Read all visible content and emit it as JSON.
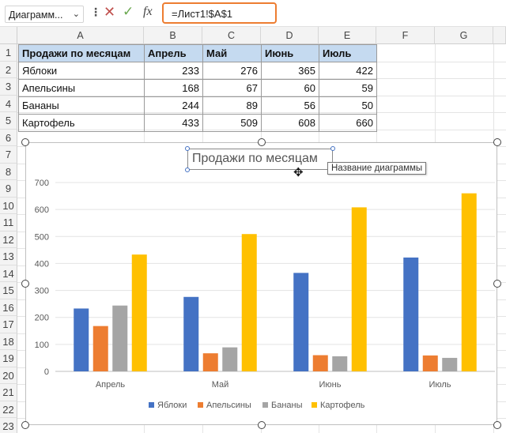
{
  "formula_bar": {
    "name_box": "Диаграмм...",
    "chevron": "⌄",
    "dots": "⋮",
    "cancel": "✕",
    "enter": "✓",
    "fx": "fx",
    "formula": "=Лист1!$A$1"
  },
  "columns": [
    "A",
    "B",
    "C",
    "D",
    "E",
    "F",
    "G"
  ],
  "rows": [
    "1",
    "2",
    "3",
    "4",
    "5",
    "6",
    "7",
    "8",
    "9",
    "10",
    "11",
    "12",
    "13",
    "14",
    "15",
    "16",
    "17",
    "18",
    "19",
    "20",
    "21",
    "22",
    "23"
  ],
  "table": {
    "header": [
      "Продажи по месяцам",
      "Апрель",
      "Май",
      "Июнь",
      "Июль"
    ],
    "rows": [
      [
        "Яблоки",
        "233",
        "276",
        "365",
        "422"
      ],
      [
        "Апельсины",
        "168",
        "67",
        "60",
        "59"
      ],
      [
        "Бананы",
        "244",
        "89",
        "56",
        "50"
      ],
      [
        "Картофель",
        "433",
        "509",
        "608",
        "660"
      ]
    ]
  },
  "chart": {
    "title": "Продажи по месяцам",
    "tooltip": "Название диаграммы",
    "move_cursor": "✥"
  },
  "chart_data": {
    "type": "bar",
    "title": "Продажи по месяцам",
    "categories": [
      "Апрель",
      "Май",
      "Июнь",
      "Июль"
    ],
    "series": [
      {
        "name": "Яблоки",
        "color": "#4472c4",
        "values": [
          233,
          276,
          365,
          422
        ]
      },
      {
        "name": "Апельсины",
        "color": "#ed7d31",
        "values": [
          168,
          67,
          60,
          59
        ]
      },
      {
        "name": "Бананы",
        "color": "#a5a5a5",
        "values": [
          244,
          89,
          56,
          50
        ]
      },
      {
        "name": "Картофель",
        "color": "#ffc000",
        "values": [
          433,
          509,
          608,
          660
        ]
      }
    ],
    "ylim": [
      0,
      700
    ],
    "yticks": [
      0,
      100,
      200,
      300,
      400,
      500,
      600,
      700
    ],
    "grid": true,
    "legend": "bottom"
  }
}
